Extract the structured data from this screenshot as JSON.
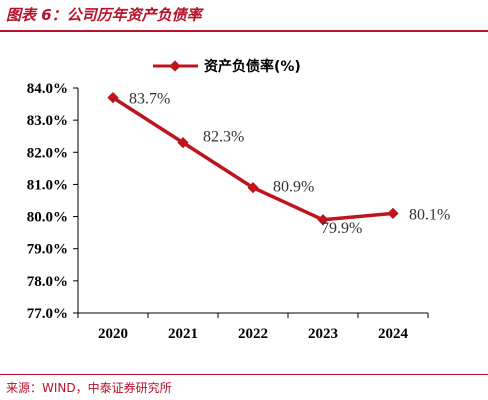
{
  "header": {
    "title": "图表 6：公司历年资产负债率"
  },
  "footer": {
    "source": "来源：WIND，中泰证券研究所"
  },
  "colors": {
    "accent": "#b8112a",
    "series": "#c0141c"
  },
  "chart_data": {
    "type": "line",
    "title": "",
    "xlabel": "",
    "ylabel": "",
    "categories": [
      "2020",
      "2021",
      "2022",
      "2023",
      "2024"
    ],
    "series": [
      {
        "name": "资产负债率(%)",
        "values": [
          83.7,
          82.3,
          80.9,
          79.9,
          80.1
        ],
        "labels": [
          "83.7%",
          "82.3%",
          "80.9%",
          "79.9%",
          "80.1%"
        ]
      }
    ],
    "ylim": [
      77.0,
      84.0
    ],
    "yticks": [
      "77.0%",
      "78.0%",
      "79.0%",
      "80.0%",
      "81.0%",
      "82.0%",
      "83.0%",
      "84.0%"
    ],
    "grid": false,
    "legend": "top"
  }
}
